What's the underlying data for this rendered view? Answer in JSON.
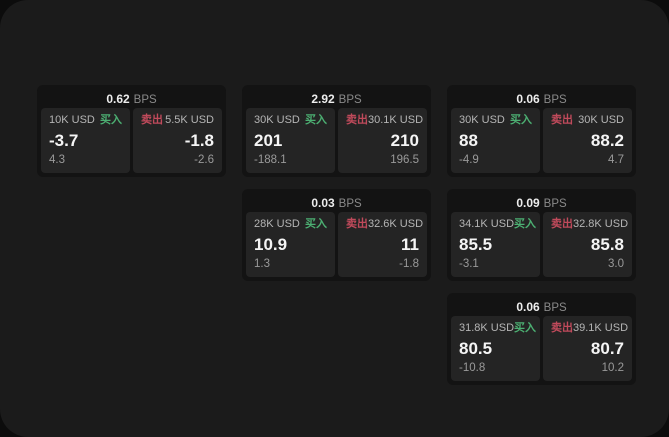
{
  "labels": {
    "bps": "BPS",
    "buy": "买入",
    "sell": "卖出"
  },
  "colors": {
    "outer_background": "#0c0c0c",
    "panel_background": "#1b1b1b",
    "card_background": "#131313",
    "tile_background": "#242424",
    "buy_green": "#4caf72",
    "sell_red": "#c04a5b"
  },
  "cards": [
    {
      "bps": "0.62",
      "buy": {
        "amount": "10K USD",
        "price": "-3.7",
        "delta": "4.3"
      },
      "sell": {
        "amount": "5.5K USD",
        "price": "-1.8",
        "delta": "-2.6"
      }
    },
    {
      "bps": "2.92",
      "buy": {
        "amount": "30K USD",
        "price": "201",
        "delta": "-188.1"
      },
      "sell": {
        "amount": "30.1K USD",
        "price": "210",
        "delta": "196.5"
      }
    },
    {
      "bps": "0.06",
      "buy": {
        "amount": "30K USD",
        "price": "88",
        "delta": "-4.9"
      },
      "sell": {
        "amount": "30K USD",
        "price": "88.2",
        "delta": "4.7"
      }
    },
    {
      "bps": "0.03",
      "buy": {
        "amount": "28K USD",
        "price": "10.9",
        "delta": "1.3"
      },
      "sell": {
        "amount": "32.6K USD",
        "price": "11",
        "delta": "-1.8"
      }
    },
    {
      "bps": "0.09",
      "buy": {
        "amount": "34.1K USD",
        "price": "85.5",
        "delta": "-3.1"
      },
      "sell": {
        "amount": "32.8K USD",
        "price": "85.8",
        "delta": "3.0"
      }
    },
    {
      "bps": "0.06",
      "buy": {
        "amount": "31.8K USD",
        "price": "80.5",
        "delta": "-10.8"
      },
      "sell": {
        "amount": "39.1K USD",
        "price": "80.7",
        "delta": "10.2"
      }
    }
  ]
}
